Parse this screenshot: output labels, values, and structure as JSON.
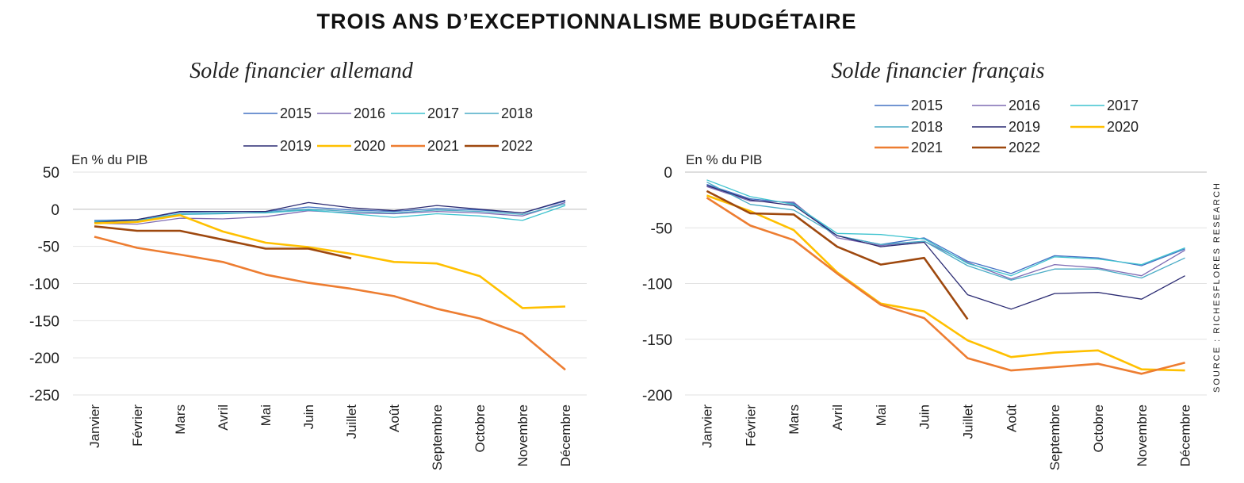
{
  "title": "TROIS ANS D’EXCEPTIONNALISME BUDGÉTAIRE",
  "source": "SOURCE : RICHESFLORES RESEARCH",
  "colors": {
    "2015": "#4472c4",
    "2016": "#7e6bb3",
    "2017": "#3ec3cf",
    "2018": "#4bacc6",
    "2019": "#2a2a72",
    "2020": "#ffc000",
    "2021": "#ed7d31",
    "2022": "#9e480e"
  },
  "chart_data": [
    {
      "type": "line",
      "title": "Solde financier allemand",
      "ylabel": "En % du PIB",
      "ylim": [
        -250,
        50
      ],
      "yticks": [
        50,
        0,
        -50,
        -100,
        -150,
        -200,
        -250
      ],
      "grid": true,
      "legend": "top",
      "legend_rows": [
        [
          "2015",
          "2016",
          "2017",
          "2018"
        ],
        [
          "2019",
          "2020",
          "2021",
          "2022"
        ]
      ],
      "categories": [
        "Janvier",
        "Février",
        "Mars",
        "Avril",
        "Mai",
        "Juin",
        "Juillet",
        "Août",
        "Septembre",
        "Octobre",
        "Novembre",
        "Décembre"
      ],
      "series": [
        {
          "name": "2015",
          "values": [
            -15,
            -14,
            -4,
            -3,
            -3,
            3,
            -1,
            -3,
            1,
            -1,
            -5,
            11
          ]
        },
        {
          "name": "2016",
          "values": [
            -19,
            -20,
            -12,
            -13,
            -10,
            -2,
            -5,
            -6,
            -3,
            -5,
            -9,
            9
          ]
        },
        {
          "name": "2017",
          "values": [
            -17,
            -15,
            -6,
            -5,
            -5,
            -1,
            -6,
            -11,
            -6,
            -9,
            -15,
            5
          ]
        },
        {
          "name": "2018",
          "values": [
            -16,
            -15,
            -7,
            -6,
            -4,
            0,
            -3,
            -5,
            -1,
            -3,
            -7,
            7
          ]
        },
        {
          "name": "2019",
          "values": [
            -18,
            -14,
            -3,
            -3,
            -3,
            9,
            2,
            -2,
            5,
            0,
            -5,
            12
          ]
        },
        {
          "name": "2020",
          "values": [
            -19,
            -17,
            -8,
            -30,
            -45,
            -51,
            -60,
            -71,
            -73,
            -90,
            -133,
            -131
          ]
        },
        {
          "name": "2021",
          "values": [
            -37,
            -52,
            -61,
            -71,
            -88,
            -99,
            -107,
            -117,
            -134,
            -147,
            -168,
            -216
          ]
        },
        {
          "name": "2022",
          "values": [
            -23,
            -29,
            -29,
            -41,
            -53,
            -53,
            -66,
            null,
            null,
            null,
            null,
            null
          ]
        }
      ]
    },
    {
      "type": "line",
      "title": "Solde financier français",
      "ylabel": "En % du PIB",
      "ylim": [
        -200,
        0
      ],
      "yticks": [
        0,
        -50,
        -100,
        -150,
        -200
      ],
      "grid": true,
      "legend": "top",
      "legend_rows": [
        [
          "2015",
          "2016",
          "2017"
        ],
        [
          "2018",
          "2019",
          "2020"
        ],
        [
          "2021",
          "2022"
        ]
      ],
      "categories": [
        "Janvier",
        "Février",
        "Mars",
        "Avril",
        "Mai",
        "Juin",
        "Juillet",
        "Août",
        "Septembre",
        "Octobre",
        "Novembre",
        "Décembre"
      ],
      "series": [
        {
          "name": "2015",
          "values": [
            -11,
            -24,
            -28,
            -57,
            -65,
            -59,
            -80,
            -91,
            -75,
            -77,
            -84,
            -69
          ]
        },
        {
          "name": "2016",
          "values": [
            -13,
            -26,
            -27,
            -59,
            -66,
            -62,
            -81,
            -96,
            -83,
            -86,
            -93,
            -70
          ]
        },
        {
          "name": "2017",
          "values": [
            -7,
            -22,
            -29,
            -55,
            -56,
            -60,
            -82,
            -93,
            -76,
            -78,
            -83,
            -68
          ]
        },
        {
          "name": "2018",
          "values": [
            -9,
            -29,
            -34,
            -57,
            -65,
            -62,
            -84,
            -97,
            -87,
            -87,
            -95,
            -77
          ]
        },
        {
          "name": "2019",
          "values": [
            -12,
            -25,
            -30,
            -57,
            -67,
            -63,
            -110,
            -123,
            -109,
            -108,
            -114,
            -93
          ]
        },
        {
          "name": "2020",
          "values": [
            -21,
            -35,
            -52,
            -90,
            -118,
            -125,
            -151,
            -166,
            -162,
            -160,
            -177,
            -178
          ]
        },
        {
          "name": "2021",
          "values": [
            -23,
            -48,
            -61,
            -91,
            -119,
            -131,
            -167,
            -178,
            -175,
            -172,
            -181,
            -171
          ]
        },
        {
          "name": "2022",
          "values": [
            -17,
            -37,
            -38,
            -67,
            -83,
            -77,
            -132,
            null,
            null,
            null,
            null,
            null
          ]
        }
      ]
    }
  ]
}
